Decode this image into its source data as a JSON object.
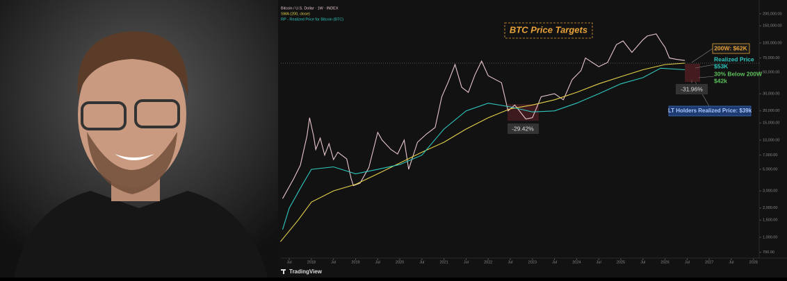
{
  "chart_data": {
    "type": "line",
    "log_scale": true,
    "series": [
      {
        "name": "Bitcoin / U.S. Dollar · 1W · INDEX",
        "color": "#e8c6cc",
        "x": [
          2017.35,
          2017.6,
          2017.75,
          2017.9,
          2017.96,
          2018.05,
          2018.1,
          2018.2,
          2018.3,
          2018.4,
          2018.5,
          2018.6,
          2018.8,
          2018.9,
          2018.95,
          2019.1,
          2019.3,
          2019.5,
          2019.6,
          2019.8,
          2019.95,
          2020.1,
          2020.2,
          2020.4,
          2020.6,
          2020.8,
          2020.95,
          2021.1,
          2021.25,
          2021.4,
          2021.55,
          2021.7,
          2021.85,
          2022.0,
          2022.3,
          2022.45,
          2022.6,
          2022.85,
          2023.0,
          2023.2,
          2023.5,
          2023.7,
          2023.9,
          2024.1,
          2024.2,
          2024.5,
          2024.7,
          2024.9,
          2025.05,
          2025.25,
          2025.5,
          2025.6,
          2025.8,
          2025.9,
          2026.0,
          2026.1,
          2026.25,
          2026.45
        ],
        "values": [
          2500,
          4000,
          5500,
          11000,
          17000,
          11000,
          8000,
          10500,
          7000,
          9200,
          6300,
          7500,
          6400,
          4000,
          3400,
          3600,
          5200,
          12000,
          10000,
          8000,
          7200,
          10000,
          5000,
          9500,
          11500,
          13500,
          28000,
          40000,
          60000,
          35000,
          31000,
          47000,
          65000,
          46000,
          39000,
          20000,
          23000,
          16500,
          17000,
          28000,
          30000,
          26000,
          42000,
          52000,
          70000,
          57000,
          63000,
          96000,
          105000,
          80000,
          108000,
          118000,
          124000,
          105000,
          90000,
          70000,
          68000,
          66000
        ]
      },
      {
        "name": "SMA (200, close)",
        "color": "#e6d34a",
        "x": [
          2017.3,
          2017.7,
          2018.0,
          2018.5,
          2019.0,
          2019.5,
          2020.0,
          2020.5,
          2021.0,
          2021.5,
          2022.0,
          2022.5,
          2023.0,
          2023.5,
          2024.0,
          2024.5,
          2025.0,
          2025.5,
          2026.0,
          2026.45
        ],
        "values": [
          900,
          1500,
          2300,
          3000,
          3500,
          4500,
          5800,
          7500,
          9500,
          13000,
          17000,
          21000,
          23000,
          26000,
          31000,
          38000,
          45000,
          53000,
          60000,
          62000
        ]
      },
      {
        "name": "RP - Realized Price for Bitcoin (BTC)",
        "color": "#2fc9c0",
        "x": [
          2017.35,
          2017.5,
          2017.8,
          2018.0,
          2018.5,
          2019.0,
          2019.5,
          2020.0,
          2020.5,
          2021.0,
          2021.5,
          2022.0,
          2022.5,
          2023.0,
          2023.5,
          2024.0,
          2024.5,
          2025.0,
          2025.5,
          2025.9,
          2026.45
        ],
        "values": [
          1200,
          2000,
          3500,
          5000,
          5300,
          4500,
          5000,
          5600,
          7000,
          13000,
          20000,
          24000,
          22000,
          19500,
          20000,
          24000,
          30000,
          38000,
          44000,
          55000,
          53000
        ]
      }
    ],
    "xlim": [
      2017.31,
      2028.13
    ],
    "xticks": [
      {
        "value": 2017.5,
        "label": "Jul"
      },
      {
        "value": 2018,
        "label": "2018"
      },
      {
        "value": 2018.5,
        "label": "Jul"
      },
      {
        "value": 2019,
        "label": "2019"
      },
      {
        "value": 2019.5,
        "label": "Jul"
      },
      {
        "value": 2020,
        "label": "2020"
      },
      {
        "value": 2020.5,
        "label": "Jul"
      },
      {
        "value": 2021,
        "label": "2021"
      },
      {
        "value": 2021.5,
        "label": "Jul"
      },
      {
        "value": 2022,
        "label": "2022"
      },
      {
        "value": 2022.5,
        "label": "Jul"
      },
      {
        "value": 2023,
        "label": "2023"
      },
      {
        "value": 2023.5,
        "label": "Jul"
      },
      {
        "value": 2024,
        "label": "2024"
      },
      {
        "value": 2024.5,
        "label": "Jul"
      },
      {
        "value": 2025,
        "label": "2025"
      },
      {
        "value": 2025.5,
        "label": "Jul"
      },
      {
        "value": 2026,
        "label": "2026"
      },
      {
        "value": 2026.5,
        "label": "Jul"
      },
      {
        "value": 2027,
        "label": "2027"
      },
      {
        "value": 2027.5,
        "label": "Jul"
      },
      {
        "value": 2028,
        "label": "2028"
      }
    ],
    "ylim": [
      630,
      277000
    ],
    "yticks": [
      {
        "value": 200000,
        "label": "200,000.00"
      },
      {
        "value": 150000,
        "label": "150,000.00"
      },
      {
        "value": 100000,
        "label": "100,000.00"
      },
      {
        "value": 70000,
        "label": "70,000.00"
      },
      {
        "value": 50000,
        "label": "50,000.00"
      },
      {
        "value": 30000,
        "label": "30,000.00"
      },
      {
        "value": 20000,
        "label": "20,000.00"
      },
      {
        "value": 15000,
        "label": "15,000.00"
      },
      {
        "value": 10000,
        "label": "10,000.00"
      },
      {
        "value": 7000,
        "label": "7,000.00"
      },
      {
        "value": 5000,
        "label": "5,000.00"
      },
      {
        "value": 3000,
        "label": "3,000.00"
      },
      {
        "value": 2000,
        "label": "2,000.00"
      },
      {
        "value": 1500,
        "label": "1,500.00"
      },
      {
        "value": 1000,
        "label": "1,000.00"
      },
      {
        "value": 700,
        "label": "700.00"
      }
    ],
    "annotations": [
      "BTC Price Targets",
      "200W: $62K",
      "Realized Price",
      "$53K",
      "30% Below 200W",
      "$42k",
      "-31.96%",
      "LT Holders Realized Price: $39k",
      "-29.42%"
    ],
    "watermark": "TradingView"
  }
}
